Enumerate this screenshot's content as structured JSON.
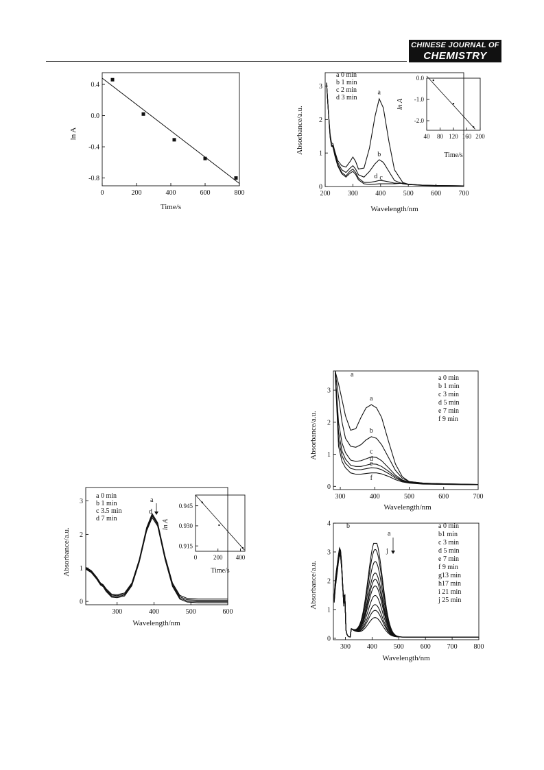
{
  "journal": {
    "line1": "CHINESE JOURNAL OF",
    "line2": "CHEMISTRY"
  },
  "chart_data": [
    {
      "id": "fig1",
      "type": "scatter",
      "xlabel": "Time/s",
      "ylabel": "ln A",
      "xlim": [
        0,
        800
      ],
      "ylim": [
        -0.9,
        0.55
      ],
      "xticks": [
        0,
        200,
        400,
        600,
        800
      ],
      "yticks": [
        -0.8,
        -0.4,
        0.0,
        0.4
      ],
      "ytick_labels": [
        "-0.8",
        "-0.4",
        "0.0",
        "0.4"
      ],
      "points": [
        [
          60,
          0.46
        ],
        [
          240,
          0.02
        ],
        [
          420,
          -0.31
        ],
        [
          600,
          -0.55
        ],
        [
          780,
          -0.8
        ]
      ],
      "fit": [
        [
          0,
          0.48
        ],
        [
          800,
          -0.87
        ]
      ]
    },
    {
      "id": "fig2",
      "type": "line",
      "xlabel": "Wavelength/nm",
      "ylabel": "Absorbance/a.u.",
      "xlim": [
        200,
        700
      ],
      "ylim": [
        0,
        3.4
      ],
      "xticks": [
        200,
        300,
        400,
        500,
        600,
        700
      ],
      "yticks": [
        0,
        1,
        2,
        3
      ],
      "legend": [
        "a 0 min",
        "b 1 min",
        "c 2 min",
        "d 3 min"
      ],
      "series": [
        {
          "name": "a",
          "x": [
            205,
            212,
            218,
            223,
            228,
            235,
            245,
            260,
            275,
            290,
            300,
            310,
            320,
            340,
            360,
            380,
            395,
            410,
            430,
            450,
            480,
            500,
            550,
            600,
            700
          ],
          "values": [
            3.1,
            2.2,
            1.55,
            1.3,
            1.28,
            1.05,
            0.78,
            0.62,
            0.58,
            0.75,
            0.88,
            0.75,
            0.52,
            0.55,
            1.15,
            2.1,
            2.62,
            2.35,
            1.35,
            0.5,
            0.12,
            0.07,
            0.04,
            0.03,
            0.02
          ]
        },
        {
          "name": "b",
          "x": [
            205,
            212,
            218,
            223,
            228,
            235,
            245,
            260,
            275,
            290,
            300,
            310,
            320,
            340,
            360,
            380,
            395,
            410,
            430,
            450,
            480,
            500,
            550,
            600,
            700
          ],
          "values": [
            3.1,
            2.2,
            1.5,
            1.25,
            1.22,
            1.0,
            0.72,
            0.5,
            0.42,
            0.55,
            0.62,
            0.52,
            0.35,
            0.28,
            0.45,
            0.68,
            0.8,
            0.72,
            0.45,
            0.18,
            0.08,
            0.06,
            0.04,
            0.03,
            0.02
          ]
        },
        {
          "name": "c",
          "x": [
            205,
            212,
            218,
            223,
            228,
            235,
            245,
            260,
            275,
            290,
            300,
            310,
            320,
            340,
            360,
            380,
            395,
            410,
            430,
            450,
            480,
            500,
            550,
            600,
            700
          ],
          "values": [
            3.1,
            2.2,
            1.48,
            1.22,
            1.2,
            0.95,
            0.66,
            0.42,
            0.32,
            0.46,
            0.52,
            0.42,
            0.25,
            0.12,
            0.12,
            0.15,
            0.18,
            0.17,
            0.14,
            0.1,
            0.09,
            0.07,
            0.04,
            0.03,
            0.02
          ]
        },
        {
          "name": "d",
          "x": [
            205,
            212,
            218,
            223,
            228,
            235,
            245,
            260,
            275,
            290,
            300,
            310,
            320,
            340,
            360,
            380,
            395,
            410,
            430,
            450,
            480,
            500,
            550,
            600,
            700
          ],
          "values": [
            3.1,
            2.2,
            1.45,
            1.2,
            1.18,
            0.92,
            0.62,
            0.38,
            0.28,
            0.4,
            0.45,
            0.36,
            0.2,
            0.08,
            0.06,
            0.07,
            0.08,
            0.08,
            0.08,
            0.08,
            0.1,
            0.06,
            0.03,
            0.02,
            0.02
          ]
        }
      ],
      "annotations": [
        "a",
        "b",
        "c",
        "d"
      ],
      "inset": {
        "xlabel": "Time/s",
        "ylabel": "ln A",
        "xlim": [
          40,
          200
        ],
        "ylim": [
          -2.45,
          0.0
        ],
        "xticks": [
          40,
          80,
          120,
          160,
          200
        ],
        "yticks": [
          0.0,
          -1.0,
          -2.0
        ],
        "ytick_labels": [
          "0.0",
          "-1.0",
          "-2.0"
        ],
        "points": [
          [
            60,
            -0.1
          ],
          [
            120,
            -1.2
          ],
          [
            180,
            -2.3
          ]
        ],
        "fit": [
          [
            40,
            0.1
          ],
          [
            185,
            -2.4
          ]
        ]
      }
    },
    {
      "id": "fig3",
      "type": "line",
      "xlabel": "Wavelength/nm",
      "ylabel": "Absorbance/a.u.",
      "xlim": [
        215,
        600
      ],
      "ylim": [
        -0.1,
        3.4
      ],
      "xticks": [
        300,
        400,
        500,
        600
      ],
      "yticks": [
        0,
        1,
        2,
        3
      ],
      "legend": [
        "a  0 min",
        "b  1 min",
        "c  3.5 min",
        "d  7 min"
      ],
      "arrow_labels": [
        "a",
        "d"
      ],
      "series": [
        {
          "name": "a",
          "x": [
            215,
            230,
            245,
            255,
            262,
            270,
            285,
            300,
            320,
            340,
            360,
            380,
            395,
            410,
            430,
            450,
            470,
            490,
            520,
            600
          ],
          "values": [
            1.02,
            0.92,
            0.72,
            0.55,
            0.5,
            0.38,
            0.22,
            0.2,
            0.25,
            0.55,
            1.25,
            2.2,
            2.62,
            2.35,
            1.35,
            0.55,
            0.18,
            0.09,
            0.07,
            0.07
          ]
        },
        {
          "name": "b",
          "x": [
            215,
            230,
            245,
            255,
            262,
            270,
            285,
            300,
            320,
            340,
            360,
            380,
            395,
            410,
            430,
            450,
            470,
            490,
            520,
            600
          ],
          "values": [
            1.0,
            0.9,
            0.7,
            0.53,
            0.48,
            0.35,
            0.19,
            0.17,
            0.22,
            0.52,
            1.22,
            2.17,
            2.58,
            2.32,
            1.32,
            0.52,
            0.14,
            0.05,
            0.03,
            0.03
          ]
        },
        {
          "name": "c",
          "x": [
            215,
            230,
            245,
            255,
            262,
            270,
            285,
            300,
            320,
            340,
            360,
            380,
            395,
            410,
            430,
            450,
            470,
            490,
            520,
            600
          ],
          "values": [
            0.98,
            0.88,
            0.68,
            0.51,
            0.46,
            0.33,
            0.16,
            0.14,
            0.19,
            0.5,
            1.2,
            2.14,
            2.55,
            2.29,
            1.29,
            0.48,
            0.1,
            0.01,
            -0.01,
            -0.01
          ]
        },
        {
          "name": "d",
          "x": [
            215,
            230,
            245,
            255,
            262,
            270,
            285,
            300,
            320,
            340,
            360,
            380,
            395,
            410,
            430,
            450,
            470,
            490,
            520,
            600
          ],
          "values": [
            0.96,
            0.86,
            0.66,
            0.49,
            0.44,
            0.3,
            0.13,
            0.11,
            0.16,
            0.47,
            1.17,
            2.1,
            2.5,
            2.25,
            1.25,
            0.45,
            0.07,
            -0.02,
            -0.04,
            -0.04
          ]
        }
      ],
      "inset": {
        "xlabel": "Time/s",
        "ylabel": "ln A",
        "xlim": [
          0,
          440
        ],
        "ylim": [
          0.911,
          0.953
        ],
        "xticks": [
          0,
          200,
          400
        ],
        "yticks": [
          0.945,
          0.93,
          0.915
        ],
        "ytick_labels": [
          "0.945",
          "0.930",
          "0.915"
        ],
        "points": [
          [
            60,
            0.9475
          ],
          [
            210,
            0.9305
          ],
          [
            420,
            0.9135
          ]
        ],
        "fit": [
          [
            0,
            0.953
          ],
          [
            435,
            0.912
          ]
        ]
      }
    },
    {
      "id": "fig4a",
      "type": "line",
      "panel_label": "a",
      "xlabel": "Wavelength/nm",
      "ylabel": "Absorbance/a.u.",
      "xlim": [
        280,
        700
      ],
      "ylim": [
        -0.1,
        3.6
      ],
      "xticks": [
        300,
        400,
        500,
        600,
        700
      ],
      "yticks": [
        0,
        1,
        2,
        3
      ],
      "legend": [
        "a 0 min",
        "b 1 min",
        "c 3 min",
        "d 5 min",
        "e 7 min",
        "f 9 min"
      ],
      "series": [
        {
          "name": "a",
          "x": [
            285,
            295,
            305,
            315,
            330,
            345,
            360,
            375,
            390,
            405,
            420,
            440,
            460,
            480,
            500,
            540,
            600,
            700
          ],
          "values": [
            3.6,
            3.2,
            2.7,
            2.2,
            1.75,
            1.8,
            2.15,
            2.45,
            2.55,
            2.45,
            2.15,
            1.4,
            0.7,
            0.3,
            0.15,
            0.1,
            0.08,
            0.06
          ]
        },
        {
          "name": "b",
          "x": [
            285,
            295,
            305,
            315,
            330,
            345,
            360,
            375,
            390,
            405,
            420,
            440,
            460,
            480,
            500,
            540,
            600,
            700
          ],
          "values": [
            3.6,
            2.8,
            2.0,
            1.5,
            1.25,
            1.22,
            1.3,
            1.45,
            1.55,
            1.5,
            1.3,
            0.9,
            0.5,
            0.25,
            0.15,
            0.1,
            0.08,
            0.06
          ]
        },
        {
          "name": "c",
          "x": [
            285,
            295,
            305,
            315,
            330,
            345,
            360,
            375,
            390,
            405,
            420,
            440,
            460,
            480,
            500,
            540,
            600,
            700
          ],
          "values": [
            3.6,
            2.0,
            1.35,
            1.05,
            0.82,
            0.78,
            0.8,
            0.86,
            0.92,
            0.9,
            0.8,
            0.58,
            0.35,
            0.2,
            0.13,
            0.09,
            0.07,
            0.06
          ]
        },
        {
          "name": "d",
          "x": [
            285,
            295,
            305,
            315,
            330,
            345,
            360,
            375,
            390,
            405,
            420,
            440,
            460,
            480,
            500,
            540,
            600,
            700
          ],
          "values": [
            3.6,
            1.7,
            1.1,
            0.85,
            0.66,
            0.62,
            0.62,
            0.66,
            0.7,
            0.69,
            0.62,
            0.47,
            0.3,
            0.18,
            0.12,
            0.08,
            0.07,
            0.05
          ]
        },
        {
          "name": "e",
          "x": [
            285,
            295,
            305,
            315,
            330,
            345,
            360,
            375,
            390,
            405,
            420,
            440,
            460,
            480,
            500,
            540,
            600,
            700
          ],
          "values": [
            3.6,
            1.45,
            0.95,
            0.72,
            0.56,
            0.52,
            0.52,
            0.55,
            0.58,
            0.57,
            0.52,
            0.4,
            0.26,
            0.16,
            0.11,
            0.08,
            0.06,
            0.05
          ]
        },
        {
          "name": "f",
          "x": [
            285,
            295,
            305,
            315,
            330,
            345,
            360,
            375,
            390,
            405,
            420,
            440,
            460,
            480,
            500,
            540,
            600,
            700
          ],
          "values": [
            3.6,
            1.25,
            0.78,
            0.58,
            0.42,
            0.38,
            0.38,
            0.4,
            0.42,
            0.42,
            0.39,
            0.31,
            0.21,
            0.14,
            0.1,
            0.07,
            0.06,
            0.05
          ]
        }
      ],
      "annotations": [
        "a",
        "b",
        "c",
        "d",
        "e",
        "f"
      ]
    },
    {
      "id": "fig4b",
      "type": "line",
      "panel_label": "b",
      "xlabel": "Wavelength/nm",
      "ylabel": "Absorbance/a.u.",
      "xlim": [
        255,
        800
      ],
      "ylim": [
        -0.05,
        4.0
      ],
      "xticks": [
        300,
        400,
        500,
        600,
        700,
        800
      ],
      "yticks": [
        0,
        1,
        2,
        3,
        4
      ],
      "legend": [
        "a 0 min",
        "b1 min",
        "c 3 min",
        "d 5 min",
        "e 7 min",
        "f 9 min",
        "g13 min",
        "h17 min",
        "i  21 min",
        "j 25 min"
      ],
      "arrow_labels": [
        "a",
        "j"
      ],
      "peak_heights": [
        3.32,
        3.02,
        2.6,
        2.2,
        1.98,
        1.75,
        1.42,
        1.1,
        0.9,
        0.65
      ]
    }
  ]
}
